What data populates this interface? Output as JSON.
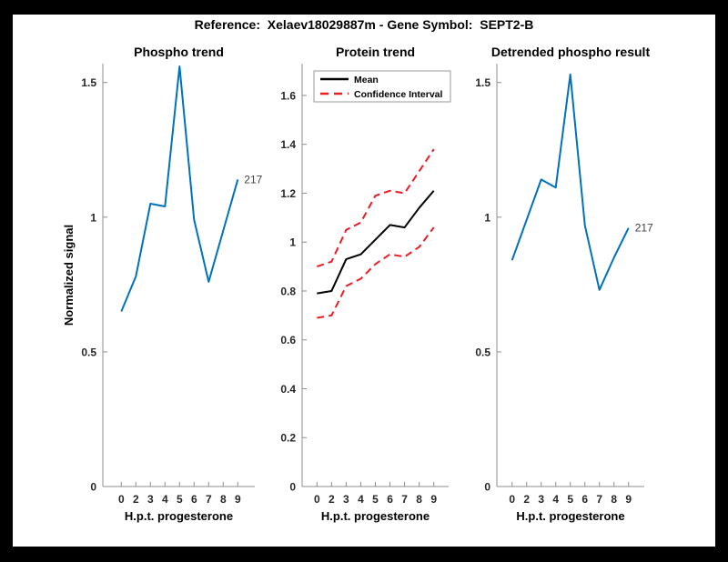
{
  "figure": {
    "title": "Reference:  Xelaev18029887m - Gene Symbol:  SEPT2-B",
    "background": "#000000",
    "canvas_color": "#ffffff"
  },
  "colors": {
    "blue": "#0072BD",
    "red": "#ED1C24",
    "black": "#000000",
    "axis_line": "#8c8c8c",
    "text": "#262626",
    "end_label": "#404040"
  },
  "chart_data": [
    {
      "type": "line",
      "title": "Phospho trend",
      "xlabel": "H.p.t. progesterone",
      "ylabel": "Normalized signal",
      "x_tick_labels": [
        "0",
        "2",
        "3",
        "4",
        "5",
        "6",
        "7",
        "8",
        "9"
      ],
      "y_ticks": [
        0,
        0.5,
        1,
        1.5
      ],
      "ylim": [
        0,
        1.57
      ],
      "grid": false,
      "series": [
        {
          "name": "phospho-signal",
          "color_key": "blue",
          "style": "solid",
          "values": [
            0.65,
            0.78,
            1.05,
            1.04,
            1.56,
            0.99,
            0.76,
            0.95,
            1.14
          ]
        }
      ],
      "end_label": "217",
      "legend": null
    },
    {
      "type": "line",
      "title": "Protein trend",
      "xlabel": "H.p.t. progesterone",
      "ylabel": "",
      "x_tick_labels": [
        "0",
        "2",
        "3",
        "4",
        "5",
        "6",
        "7",
        "8",
        "9"
      ],
      "y_ticks": [
        0,
        0.2,
        0.4,
        0.6,
        0.8,
        1,
        1.2,
        1.4,
        1.6
      ],
      "ylim": [
        0,
        1.73
      ],
      "grid": false,
      "series": [
        {
          "name": "protein-mean",
          "color_key": "black",
          "style": "solid",
          "values": [
            0.79,
            0.8,
            0.93,
            0.95,
            1.01,
            1.07,
            1.06,
            1.14,
            1.21
          ]
        },
        {
          "name": "confidence-upper",
          "color_key": "red",
          "style": "dashed",
          "values": [
            0.9,
            0.92,
            1.05,
            1.08,
            1.19,
            1.21,
            1.2,
            1.29,
            1.38
          ]
        },
        {
          "name": "confidence-lower",
          "color_key": "red",
          "style": "dashed",
          "values": [
            0.69,
            0.7,
            0.82,
            0.85,
            0.91,
            0.95,
            0.94,
            0.98,
            1.06
          ]
        }
      ],
      "end_label": null,
      "legend": {
        "position": "top-left",
        "entries": [
          {
            "label": "Mean",
            "color_key": "black",
            "style": "solid"
          },
          {
            "label": "Confidence Interval",
            "color_key": "red",
            "style": "dashed"
          }
        ]
      }
    },
    {
      "type": "line",
      "title": "Detrended phospho result",
      "xlabel": "H.p.t. progesterone",
      "ylabel": "",
      "x_tick_labels": [
        "0",
        "2",
        "3",
        "4",
        "5",
        "6",
        "7",
        "8",
        "9"
      ],
      "y_ticks": [
        0,
        0.5,
        1,
        1.5
      ],
      "ylim": [
        0,
        1.57
      ],
      "grid": false,
      "series": [
        {
          "name": "detrended-signal",
          "color_key": "blue",
          "style": "solid",
          "values": [
            0.84,
            0.99,
            1.14,
            1.11,
            1.53,
            0.97,
            0.73,
            0.85,
            0.96
          ]
        }
      ],
      "end_label": "217",
      "legend": null
    }
  ]
}
